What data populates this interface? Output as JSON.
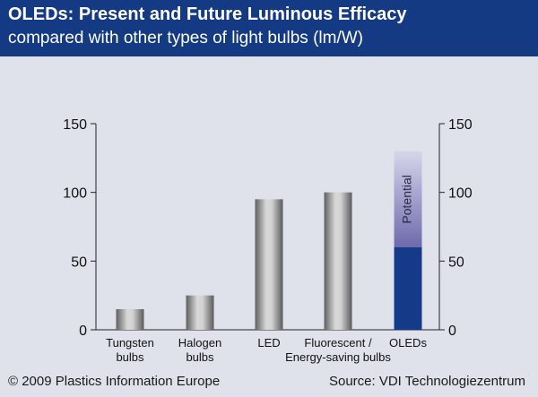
{
  "header": {
    "title": "OLEDs: Present and Future Luminous Efficacy",
    "subtitle": "compared with other types of light bulbs (lm/W)"
  },
  "footer": {
    "copyright": "© 2009 Plastics Information Europe",
    "source": "Source: VDI Technologiezentrum"
  },
  "chart_data": {
    "type": "bar",
    "categories": [
      [
        "Tungsten",
        "bulbs"
      ],
      [
        "Halogen",
        "bulbs"
      ],
      [
        "LED"
      ],
      [
        "Fluorescent /",
        "Energy-saving bulbs"
      ],
      [
        "OLEDs"
      ]
    ],
    "values": [
      15,
      25,
      95,
      100,
      60
    ],
    "potential": {
      "category_index": 4,
      "from": 60,
      "to": 130,
      "label": "Potential"
    },
    "ylim": [
      0,
      150
    ],
    "yticks": [
      0,
      50,
      100,
      150
    ],
    "axes": "left-and-right",
    "grid": false,
    "colors": {
      "bar": "#9a9a9a",
      "oled_present": "#153a87",
      "oled_potential": "#8a86bf",
      "background": "#dfe2ea",
      "header": "#143a84"
    }
  }
}
